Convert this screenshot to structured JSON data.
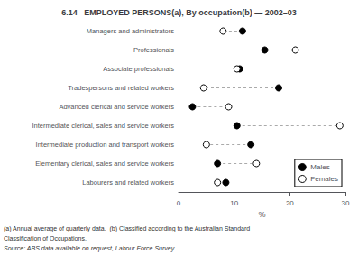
{
  "chart_data": {
    "type": "dot",
    "title": "6.14   EMPLOYED PERSONS(a), By occupation(b) — 2002–03",
    "orientation": "horizontal",
    "categories": [
      "Managers and administrators",
      "Professionals",
      "Associate professionals",
      "Tradespersons and related workers",
      "Advanced clerical and service workers",
      "Intermediate clerical, sales and service workers",
      "Intermediate production and transport workers",
      "Elementary clerical, sales and service workers",
      "Labourers and related workers"
    ],
    "series": [
      {
        "name": "Males",
        "color": "#000000",
        "values": [
          11.5,
          15.5,
          11.0,
          18.0,
          2.5,
          10.5,
          13.0,
          7.0,
          8.5
        ]
      },
      {
        "name": "Females",
        "color": "#ffffff",
        "values": [
          8.0,
          21.0,
          10.5,
          4.5,
          9.0,
          29.0,
          5.0,
          14.0,
          7.0
        ]
      }
    ],
    "marker": "circle",
    "xlim": [
      0,
      30
    ],
    "xticks": [
      0,
      10,
      20,
      30
    ],
    "xlabel": "%",
    "annotations": [
      "(a) Annual average of quarterly data.  (b) Classified according to the Australian Standard",
      "Classification of Occupations.",
      "Source: ABS data available on request, Labour Force Survey."
    ],
    "legend": "lower right",
    "grid": false
  }
}
